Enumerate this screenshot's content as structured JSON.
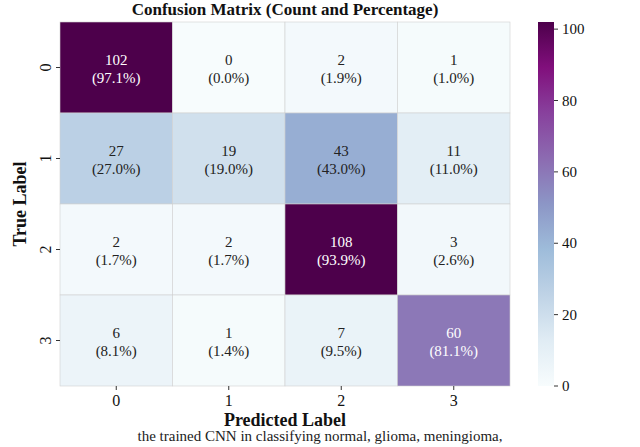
{
  "chart_data": {
    "type": "heatmap",
    "title": "Confusion Matrix (Count and Percentage)",
    "x_label": "Predicted Label",
    "y_label": "True Label",
    "categories": [
      "0",
      "1",
      "2",
      "3"
    ],
    "y_categories": [
      "0",
      "1",
      "2",
      "3"
    ],
    "values": [
      [
        102,
        0,
        2,
        1
      ],
      [
        27,
        19,
        43,
        11
      ],
      [
        2,
        2,
        108,
        3
      ],
      [
        6,
        1,
        7,
        60
      ]
    ],
    "percent_labels": [
      [
        "(97.1%)",
        "(0.0%)",
        "(1.9%)",
        "(1.0%)"
      ],
      [
        "(27.0%)",
        "(19.0%)",
        "(43.0%)",
        "(11.0%)"
      ],
      [
        "(1.7%)",
        "(1.7%)",
        "(93.9%)",
        "(2.6%)"
      ],
      [
        "(8.1%)",
        "(1.4%)",
        "(9.5%)",
        "(81.1%)"
      ]
    ],
    "colorbar_range": [
      0,
      102
    ],
    "colorbar_ticks": [
      0,
      20,
      40,
      60,
      80,
      100
    ],
    "caption": "the trained CNN in classifying normal, glioma, meningioma,"
  }
}
